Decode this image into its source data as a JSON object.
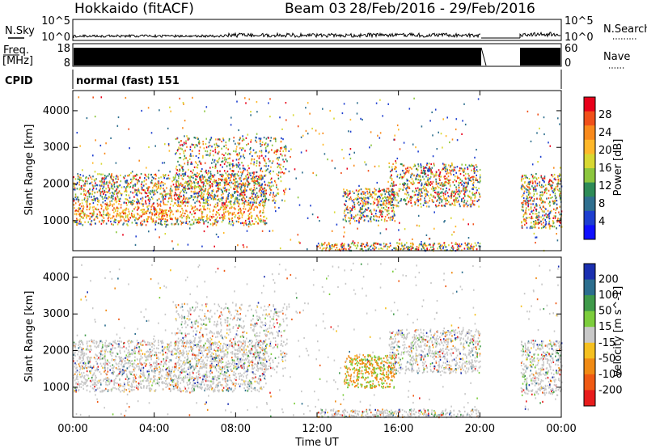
{
  "header": {
    "station": "Hokkaido (fitACF)",
    "beam": "Beam 03",
    "date_range": "28/Feb/2016 - 29/Feb/2016"
  },
  "panels": {
    "nsky": {
      "left_label": "N.Sky",
      "right_label": "N.Search",
      "left_ticks": [
        "10^5",
        "10^0"
      ],
      "right_ticks": [
        "10^5",
        "10^0"
      ]
    },
    "freq": {
      "left_label_1": "Freq.",
      "left_label_2": "[MHz]",
      "right_label": "Nave",
      "left_ticks": [
        "18",
        "8"
      ],
      "right_ticks": [
        "60",
        "0"
      ]
    },
    "cpid": {
      "label": "CPID",
      "mode": "normal (fast) 151"
    }
  },
  "chart_data": [
    {
      "type": "heatmap",
      "title": "",
      "quantity": "Power",
      "ylabel": "Slant Range [km]",
      "xlabel": "",
      "x_ticks": [
        "00:00",
        "04:00",
        "08:00",
        "12:00",
        "16:00",
        "20:00",
        "00:00"
      ],
      "y_ticks": [
        1000,
        2000,
        3000,
        4000
      ],
      "ylim": [
        180,
        4550
      ],
      "xlim_hours": [
        0,
        24
      ],
      "data_gap_hours": [
        20,
        22
      ],
      "colorbar": {
        "label": "Power [dB]",
        "ticks": [
          "28",
          "24",
          "20",
          "16",
          "12",
          "8",
          "4"
        ],
        "colors": [
          "#e8001a",
          "#f0501a",
          "#f98a1c",
          "#ffb82a",
          "#d8d832",
          "#8cc63e",
          "#2e8b57",
          "#2f6f8f",
          "#1e3fd0",
          "#1010ff"
        ]
      }
    },
    {
      "type": "heatmap",
      "title": "",
      "quantity": "Velocity",
      "ylabel": "Slant Range [km]",
      "xlabel": "Time UT",
      "x_ticks": [
        "00:00",
        "04:00",
        "08:00",
        "12:00",
        "16:00",
        "20:00",
        "00:00"
      ],
      "y_ticks": [
        1000,
        2000,
        3000,
        4000
      ],
      "ylim": [
        180,
        4550
      ],
      "xlim_hours": [
        0,
        24
      ],
      "data_gap_hours": [
        20,
        22
      ],
      "colorbar": {
        "label": "Velocity [m s^-1]",
        "ticks": [
          "200",
          "100",
          "50",
          "15",
          "-15",
          "-50",
          "-100",
          "-200"
        ],
        "colors": [
          "#1a2fb0",
          "#2c6e8e",
          "#3f9a4a",
          "#7ccd3c",
          "#c8c8c8",
          "#f5c020",
          "#f08a14",
          "#ef5a14",
          "#e81c1c"
        ]
      }
    }
  ]
}
